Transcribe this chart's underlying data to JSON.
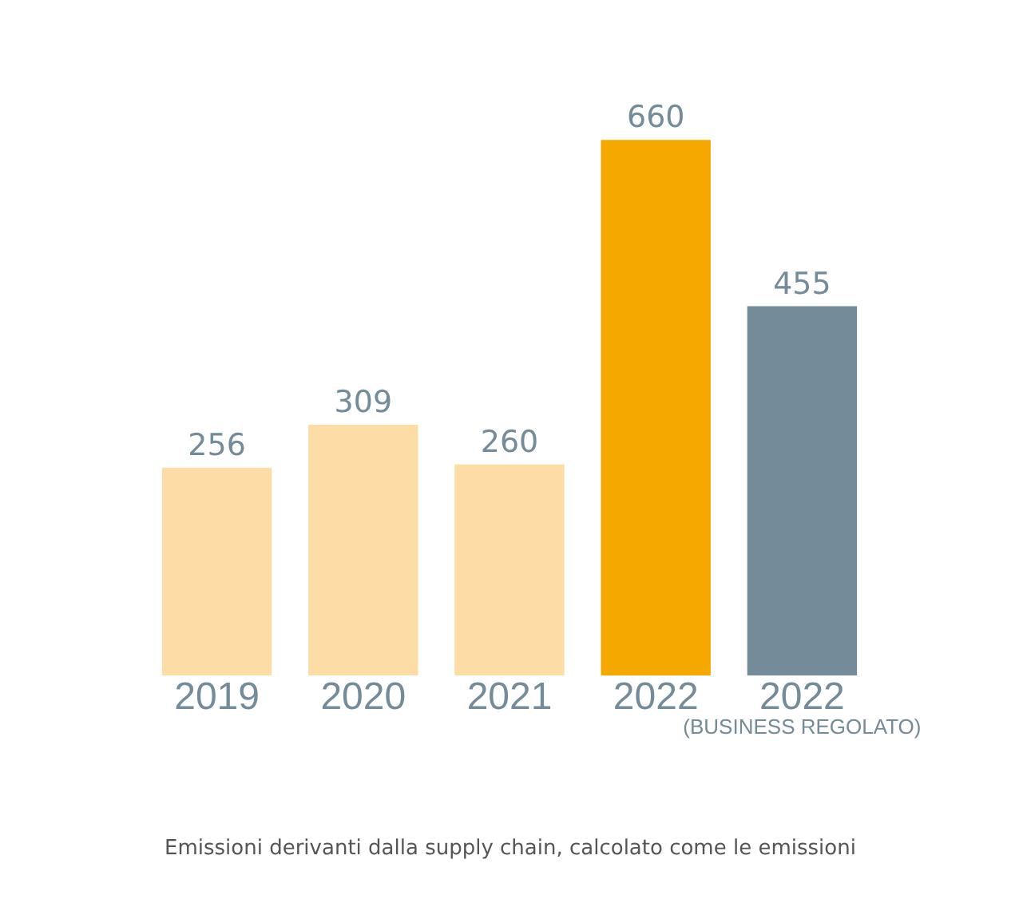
{
  "chart_data": {
    "type": "bar",
    "categories": [
      "2019",
      "2020",
      "2021",
      "2022",
      "2022\n(BUSINESS REGOLATO)"
    ],
    "values": [
      256,
      309,
      260,
      660,
      455
    ],
    "colors": [
      "#fddca6",
      "#fddca6",
      "#fddca6",
      "#f5a800",
      "#748b99"
    ],
    "data_labels": true,
    "annotations": [
      "Emissioni derivanti dalla supply chain, calcolato come le emissioni"
    ]
  }
}
